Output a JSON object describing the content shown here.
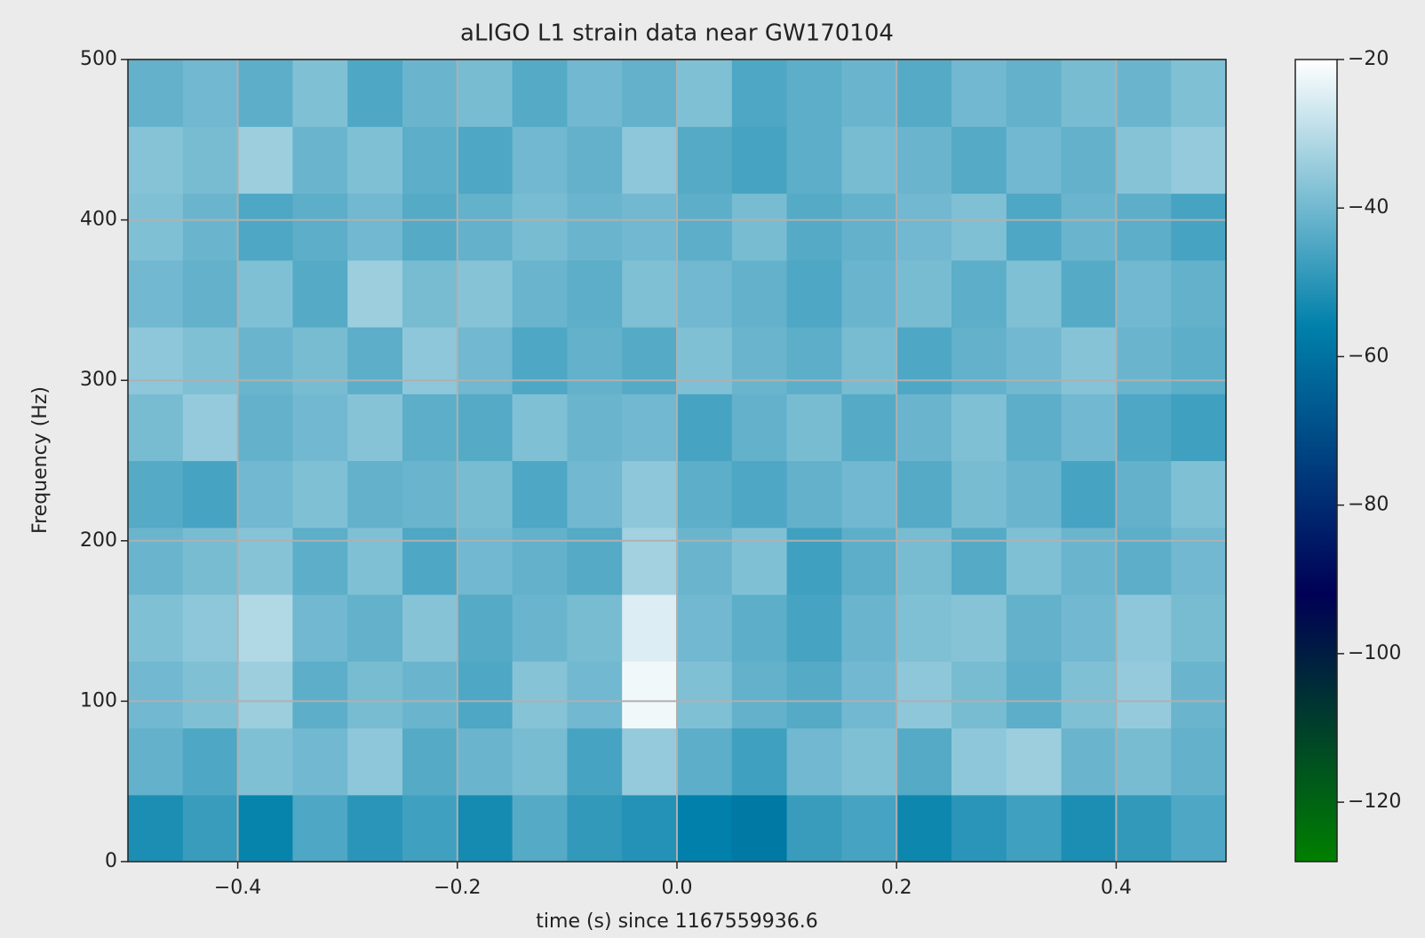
{
  "chart_data": {
    "type": "spectrogram",
    "title": "aLIGO L1 strain data near GW170104",
    "xlabel": "time (s) since 1167559936.6",
    "ylabel": "Frequency (Hz)",
    "xlim": [
      -0.5,
      0.5
    ],
    "ylim": [
      0,
      500
    ],
    "xticks": [
      {
        "value": -0.4,
        "label": "−0.4"
      },
      {
        "value": -0.2,
        "label": "−0.2"
      },
      {
        "value": 0,
        "label": "0.0"
      },
      {
        "value": 0.2,
        "label": "0.2"
      },
      {
        "value": 0.4,
        "label": "0.4"
      }
    ],
    "yticks": [
      0,
      100,
      200,
      300,
      400,
      500
    ],
    "grid": true,
    "grid_color": "#b0b0b0",
    "colormap": [
      "#008000",
      "#000055",
      "#0080aa",
      "#ffffff"
    ],
    "clim": [
      -128,
      -20
    ],
    "cticks": [
      {
        "value": -20,
        "label": "−20"
      },
      {
        "value": -40,
        "label": "−40"
      },
      {
        "value": -60,
        "label": "−60"
      },
      {
        "value": -80,
        "label": "−80"
      },
      {
        "value": -100,
        "label": "−100"
      },
      {
        "value": -120,
        "label": "−120"
      }
    ],
    "values": [
      [
        -52,
        -48,
        -55,
        -45,
        -50,
        -47,
        -53,
        -44,
        -49,
        -51,
        -56,
        -58,
        -48,
        -46,
        -54,
        -50,
        -47,
        -52,
        -49,
        -45
      ],
      [
        -42,
        -45,
        -38,
        -40,
        -36,
        -44,
        -41,
        -39,
        -46,
        -35,
        -43,
        -47,
        -40,
        -38,
        -44,
        -36,
        -34,
        -41,
        -39,
        -42
      ],
      [
        -40,
        -38,
        -34,
        -43,
        -39,
        -41,
        -45,
        -37,
        -40,
        -22,
        -38,
        -42,
        -44,
        -40,
        -36,
        -39,
        -43,
        -38,
        -35,
        -41
      ],
      [
        -38,
        -36,
        -31,
        -40,
        -42,
        -37,
        -44,
        -41,
        -39,
        -25,
        -40,
        -43,
        -46,
        -41,
        -38,
        -37,
        -42,
        -40,
        -36,
        -39
      ],
      [
        -41,
        -39,
        -37,
        -43,
        -38,
        -45,
        -40,
        -42,
        -44,
        -33,
        -41,
        -38,
        -47,
        -43,
        -39,
        -44,
        -38,
        -41,
        -43,
        -40
      ],
      [
        -44,
        -46,
        -40,
        -38,
        -42,
        -41,
        -39,
        -45,
        -40,
        -36,
        -43,
        -45,
        -42,
        -40,
        -44,
        -39,
        -41,
        -46,
        -42,
        -38
      ],
      [
        -39,
        -35,
        -42,
        -40,
        -37,
        -43,
        -44,
        -38,
        -41,
        -40,
        -46,
        -42,
        -39,
        -44,
        -41,
        -38,
        -43,
        -40,
        -45,
        -47
      ],
      [
        -36,
        -38,
        -41,
        -39,
        -43,
        -36,
        -40,
        -45,
        -42,
        -44,
        -38,
        -41,
        -43,
        -39,
        -45,
        -42,
        -40,
        -37,
        -41,
        -43
      ],
      [
        -40,
        -42,
        -38,
        -44,
        -34,
        -39,
        -37,
        -41,
        -43,
        -38,
        -40,
        -42,
        -45,
        -41,
        -39,
        -43,
        -38,
        -44,
        -40,
        -42
      ],
      [
        -38,
        -41,
        -45,
        -43,
        -40,
        -44,
        -42,
        -39,
        -41,
        -40,
        -43,
        -39,
        -44,
        -42,
        -40,
        -38,
        -45,
        -41,
        -43,
        -46
      ],
      [
        -37,
        -39,
        -34,
        -41,
        -38,
        -43,
        -45,
        -40,
        -42,
        -36,
        -44,
        -46,
        -43,
        -39,
        -41,
        -44,
        -40,
        -42,
        -37,
        -35
      ],
      [
        -42,
        -40,
        -43,
        -38,
        -45,
        -41,
        -39,
        -44,
        -40,
        -42,
        -38,
        -45,
        -43,
        -41,
        -44,
        -40,
        -42,
        -39,
        -41,
        -38
      ]
    ]
  }
}
